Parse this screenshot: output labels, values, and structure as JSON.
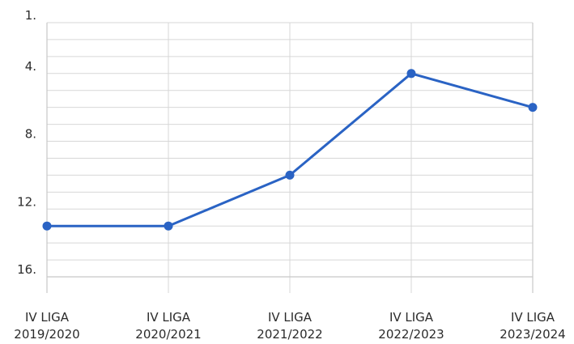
{
  "chart_data": {
    "type": "line",
    "categories": [
      [
        "IV LIGA",
        "2019/2020"
      ],
      [
        "IV LIGA",
        "2020/2021"
      ],
      [
        "IV LIGA",
        "2021/2022"
      ],
      [
        "IV LIGA",
        "2022/2023"
      ],
      [
        "IV LIGA",
        "2023/2024"
      ]
    ],
    "series": [
      {
        "values": [
          13,
          13,
          10,
          4,
          6
        ]
      }
    ],
    "yticks": [
      {
        "value": 1,
        "label": "1."
      },
      {
        "value": 4,
        "label": "4."
      },
      {
        "value": 8,
        "label": "8."
      },
      {
        "value": 12,
        "label": "12."
      },
      {
        "value": 16,
        "label": "16."
      }
    ],
    "ylim": [
      1,
      16
    ],
    "y_inverted": true,
    "grid": true,
    "colors": {
      "line": "#2a63c4",
      "grid": "#d7d7d7"
    }
  }
}
